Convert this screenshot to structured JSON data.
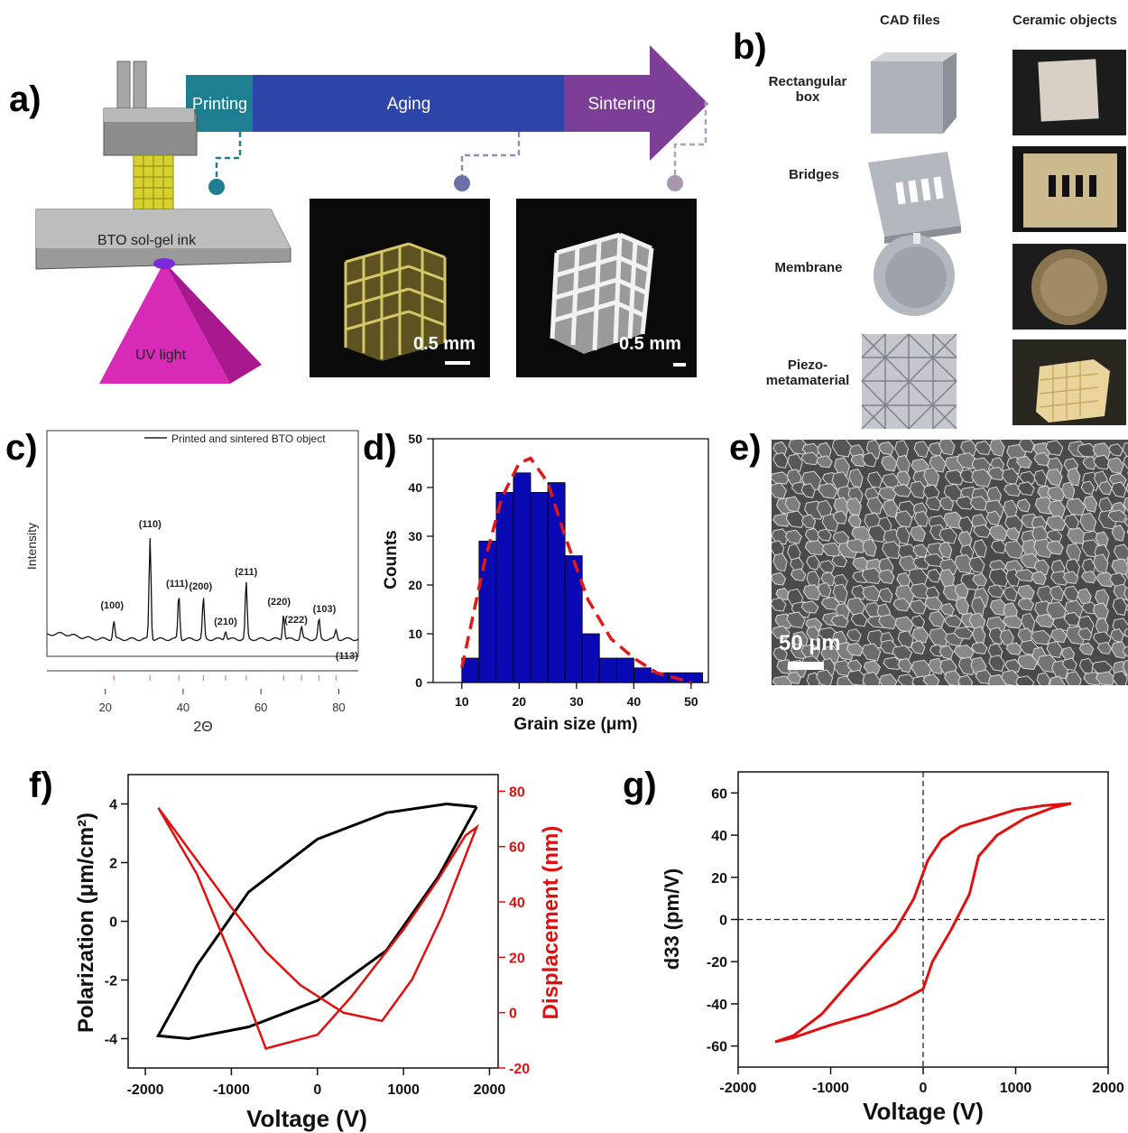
{
  "panel_labels": {
    "a": "a)",
    "b": "b)",
    "c": "c)",
    "d": "d)",
    "e": "e)",
    "f": "f)",
    "g": "g)"
  },
  "panel_a": {
    "stages": [
      "Printing",
      "Aging",
      "Sintering"
    ],
    "ink_label": "BTO sol-gel ink",
    "light_label": "UV light",
    "scale_1": "0.5 mm",
    "scale_2": "0.5 mm",
    "colors": {
      "printing": "#1e7f93",
      "aging": "#2d45a8",
      "sintering": "#7c3e97",
      "uv": "#d62ab7"
    }
  },
  "panel_b": {
    "col_cad": "CAD files",
    "col_ceramic": "Ceramic objects",
    "rows": [
      {
        "label_line1": "Rectangular",
        "label_line2": "box"
      },
      {
        "label_line1": "Bridges",
        "label_line2": ""
      },
      {
        "label_line1": "Membrane",
        "label_line2": ""
      },
      {
        "label_line1": "Piezo-",
        "label_line2": "metamaterial"
      }
    ]
  },
  "panel_e": {
    "scale": "50 µm"
  },
  "chart_data": [
    {
      "id": "c",
      "type": "line",
      "legend": "Printed and sintered BTO object",
      "ylabel": "Intensity",
      "xlabel": "2Θ",
      "xlim": [
        5,
        85
      ],
      "xticks": [
        20,
        40,
        60,
        80
      ],
      "peaks": [
        {
          "x": 22.2,
          "label": "(100)"
        },
        {
          "x": 31.5,
          "label": "(110)"
        },
        {
          "x": 38.9,
          "label": "(111)"
        },
        {
          "x": 45.2,
          "label": "(200)"
        },
        {
          "x": 50.9,
          "label": "(210)"
        },
        {
          "x": 56.2,
          "label": "(211)"
        },
        {
          "x": 65.8,
          "label": "(220)"
        },
        {
          "x": 70.4,
          "label": "(222)"
        },
        {
          "x": 74.9,
          "label": "(103)"
        },
        {
          "x": 79.3,
          "label": "(113)"
        }
      ]
    },
    {
      "id": "d",
      "type": "bar",
      "xlabel": "Grain size (μm)",
      "ylabel": "Counts",
      "xlim": [
        5,
        53
      ],
      "ylim": [
        0,
        50
      ],
      "xticks": [
        10,
        20,
        30,
        40,
        50
      ],
      "yticks": [
        0,
        10,
        20,
        30,
        40,
        50
      ],
      "bin_width": 3,
      "bin_starts": [
        10,
        13,
        16,
        19,
        22,
        25,
        28,
        31,
        34,
        37,
        40,
        43,
        46,
        49
      ],
      "values": [
        5,
        29,
        39,
        43,
        39,
        41,
        26,
        10,
        5,
        5,
        3,
        2,
        2,
        2
      ],
      "fit": [
        [
          10,
          3
        ],
        [
          14,
          25
        ],
        [
          17,
          38
        ],
        [
          20,
          45
        ],
        [
          22,
          46
        ],
        [
          25,
          41
        ],
        [
          28,
          30
        ],
        [
          32,
          17
        ],
        [
          36,
          9
        ],
        [
          40,
          5
        ],
        [
          44,
          2
        ],
        [
          47,
          1
        ],
        [
          50,
          0
        ]
      ],
      "colors": {
        "bar": "#0a0ab4",
        "fit": "#e01818"
      }
    },
    {
      "id": "f",
      "type": "line",
      "xlabel": "Voltage (V)",
      "ylabel": "Polarization (μm/cm²)",
      "y2label": "Displacement (nm)",
      "xlim": [
        -2200,
        2100
      ],
      "ylim": [
        -5,
        5
      ],
      "y2lim": [
        -20,
        86
      ],
      "xticks": [
        -2000,
        -1000,
        0,
        1000,
        2000
      ],
      "yticks": [
        -4,
        -2,
        0,
        2,
        4
      ],
      "y2ticks": [
        -20,
        0,
        20,
        40,
        60,
        80
      ],
      "series": [
        {
          "axis": "left",
          "color": "#000000",
          "points": [
            [
              1850,
              3.9
            ],
            [
              1500,
              4.0
            ],
            [
              800,
              3.7
            ],
            [
              0,
              2.8
            ],
            [
              -800,
              1.0
            ],
            [
              -1400,
              -1.5
            ],
            [
              -1850,
              -3.9
            ],
            [
              -1500,
              -4.0
            ],
            [
              -800,
              -3.6
            ],
            [
              0,
              -2.7
            ],
            [
              800,
              -1.0
            ],
            [
              1400,
              1.5
            ],
            [
              1850,
              3.9
            ]
          ]
        },
        {
          "axis": "right",
          "color": "#e01010",
          "points": [
            [
              -1850,
              74
            ],
            [
              -1400,
              55
            ],
            [
              -1000,
              38
            ],
            [
              -600,
              22
            ],
            [
              -200,
              10
            ],
            [
              300,
              0
            ],
            [
              750,
              -3
            ],
            [
              1100,
              12
            ],
            [
              1450,
              35
            ],
            [
              1850,
              67
            ],
            [
              1720,
              64
            ],
            [
              1400,
              48
            ],
            [
              1000,
              30
            ],
            [
              700,
              18
            ],
            [
              400,
              6
            ],
            [
              0,
              -8
            ],
            [
              -600,
              -13
            ],
            [
              -1000,
              20
            ],
            [
              -1400,
              50
            ],
            [
              -1850,
              74
            ]
          ]
        }
      ]
    },
    {
      "id": "g",
      "type": "line",
      "xlabel": "Voltage (V)",
      "ylabel": "d33 (pm/V)",
      "xlim": [
        -2000,
        2000
      ],
      "ylim": [
        -70,
        70
      ],
      "xticks": [
        -2000,
        -1000,
        0,
        1000,
        2000
      ],
      "yticks": [
        -60,
        -40,
        -20,
        0,
        20,
        40,
        60
      ],
      "series": [
        {
          "color": "#e01010",
          "points": [
            [
              1600,
              55
            ],
            [
              1300,
              54
            ],
            [
              1000,
              52
            ],
            [
              700,
              48
            ],
            [
              400,
              44
            ],
            [
              200,
              38
            ],
            [
              50,
              28
            ],
            [
              -100,
              10
            ],
            [
              -300,
              -5
            ],
            [
              -500,
              -15
            ],
            [
              -800,
              -30
            ],
            [
              -1100,
              -45
            ],
            [
              -1400,
              -55
            ],
            [
              -1600,
              -58
            ],
            [
              -1400,
              -56
            ],
            [
              -1000,
              -50
            ],
            [
              -600,
              -45
            ],
            [
              -300,
              -40
            ],
            [
              0,
              -33
            ],
            [
              100,
              -20
            ],
            [
              300,
              -5
            ],
            [
              500,
              12
            ],
            [
              600,
              30
            ],
            [
              800,
              40
            ],
            [
              1100,
              48
            ],
            [
              1400,
              53
            ],
            [
              1600,
              55
            ]
          ]
        }
      ]
    }
  ]
}
